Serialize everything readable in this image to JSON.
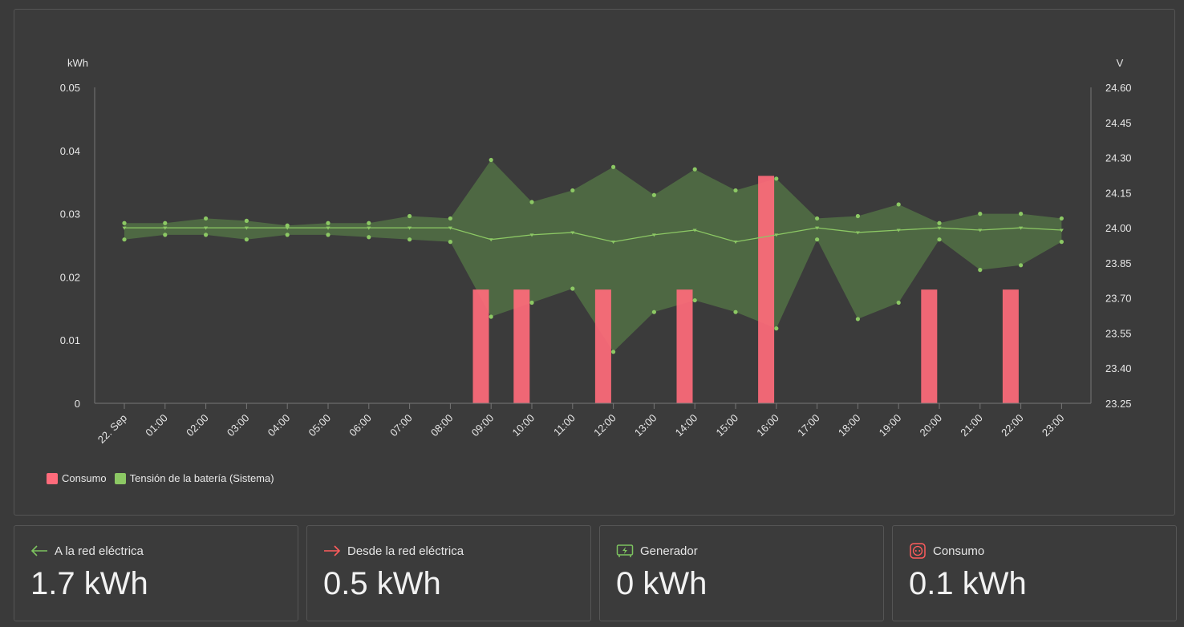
{
  "chart_data": {
    "type": "bar",
    "left_axis": {
      "label": "kWh",
      "ticks": [
        "0",
        "0.01",
        "0.02",
        "0.03",
        "0.04",
        "0.05"
      ],
      "range": [
        0,
        0.05
      ]
    },
    "right_axis": {
      "label": "V",
      "ticks": [
        "23.25",
        "23.40",
        "23.55",
        "23.70",
        "23.85",
        "24.00",
        "24.15",
        "24.30",
        "24.45",
        "24.60"
      ],
      "range": [
        23.25,
        24.6
      ]
    },
    "x_labels": [
      "22. Sep",
      "01:00",
      "02:00",
      "03:00",
      "04:00",
      "05:00",
      "06:00",
      "07:00",
      "08:00",
      "09:00",
      "10:00",
      "11:00",
      "12:00",
      "13:00",
      "14:00",
      "15:00",
      "16:00",
      "17:00",
      "18:00",
      "19:00",
      "20:00",
      "21:00",
      "22:00",
      "23:00"
    ],
    "bars": [
      {
        "x": 8.75,
        "value": 0.018
      },
      {
        "x": 9.75,
        "value": 0.018
      },
      {
        "x": 11.75,
        "value": 0.018
      },
      {
        "x": 13.75,
        "value": 0.018
      },
      {
        "x": 15.75,
        "value": 0.036
      },
      {
        "x": 19.75,
        "value": 0.018
      },
      {
        "x": 21.75,
        "value": 0.018
      }
    ],
    "voltage": {
      "max": [
        24.02,
        24.02,
        24.04,
        24.03,
        24.01,
        24.02,
        24.02,
        24.05,
        24.04,
        24.29,
        24.11,
        24.16,
        24.26,
        24.14,
        24.25,
        24.16,
        24.21,
        24.04,
        24.05,
        24.1,
        24.02,
        24.06,
        24.06,
        24.04
      ],
      "avg": [
        24.0,
        24.0,
        24.0,
        24.0,
        24.0,
        24.0,
        24.0,
        24.0,
        24.0,
        23.95,
        23.97,
        23.98,
        23.94,
        23.97,
        23.99,
        23.94,
        23.97,
        24.0,
        23.98,
        23.99,
        24.0,
        23.99,
        24.0,
        23.99
      ],
      "min": [
        23.95,
        23.97,
        23.97,
        23.95,
        23.97,
        23.97,
        23.96,
        23.95,
        23.94,
        23.62,
        23.68,
        23.74,
        23.47,
        23.64,
        23.69,
        23.64,
        23.57,
        23.95,
        23.61,
        23.68,
        23.95,
        23.82,
        23.84,
        23.94
      ]
    },
    "legend": [
      {
        "name": "Consumo",
        "color": "#ff6b7b"
      },
      {
        "name": "Tensión de la batería (Sistema)",
        "color": "#8cc864"
      }
    ],
    "colors": {
      "bar": "#ff6b7b",
      "band": "#4f6a43",
      "line": "#8cc864"
    }
  },
  "cards": [
    {
      "icon": "arrow-left-icon",
      "label": "A la red eléctrica",
      "value": "1.7 kWh",
      "icon_color": "#7dc35f"
    },
    {
      "icon": "arrow-right-icon",
      "label": "Desde la red eléctrica",
      "value": "0.5 kWh",
      "icon_color": "#ff5c5c"
    },
    {
      "icon": "generator-icon",
      "label": "Generador",
      "value": "0 kWh",
      "icon_color": "#7dc35f"
    },
    {
      "icon": "outlet-icon",
      "label": "Consumo",
      "value": "0.1 kWh",
      "icon_color": "#ff5c5c"
    }
  ]
}
